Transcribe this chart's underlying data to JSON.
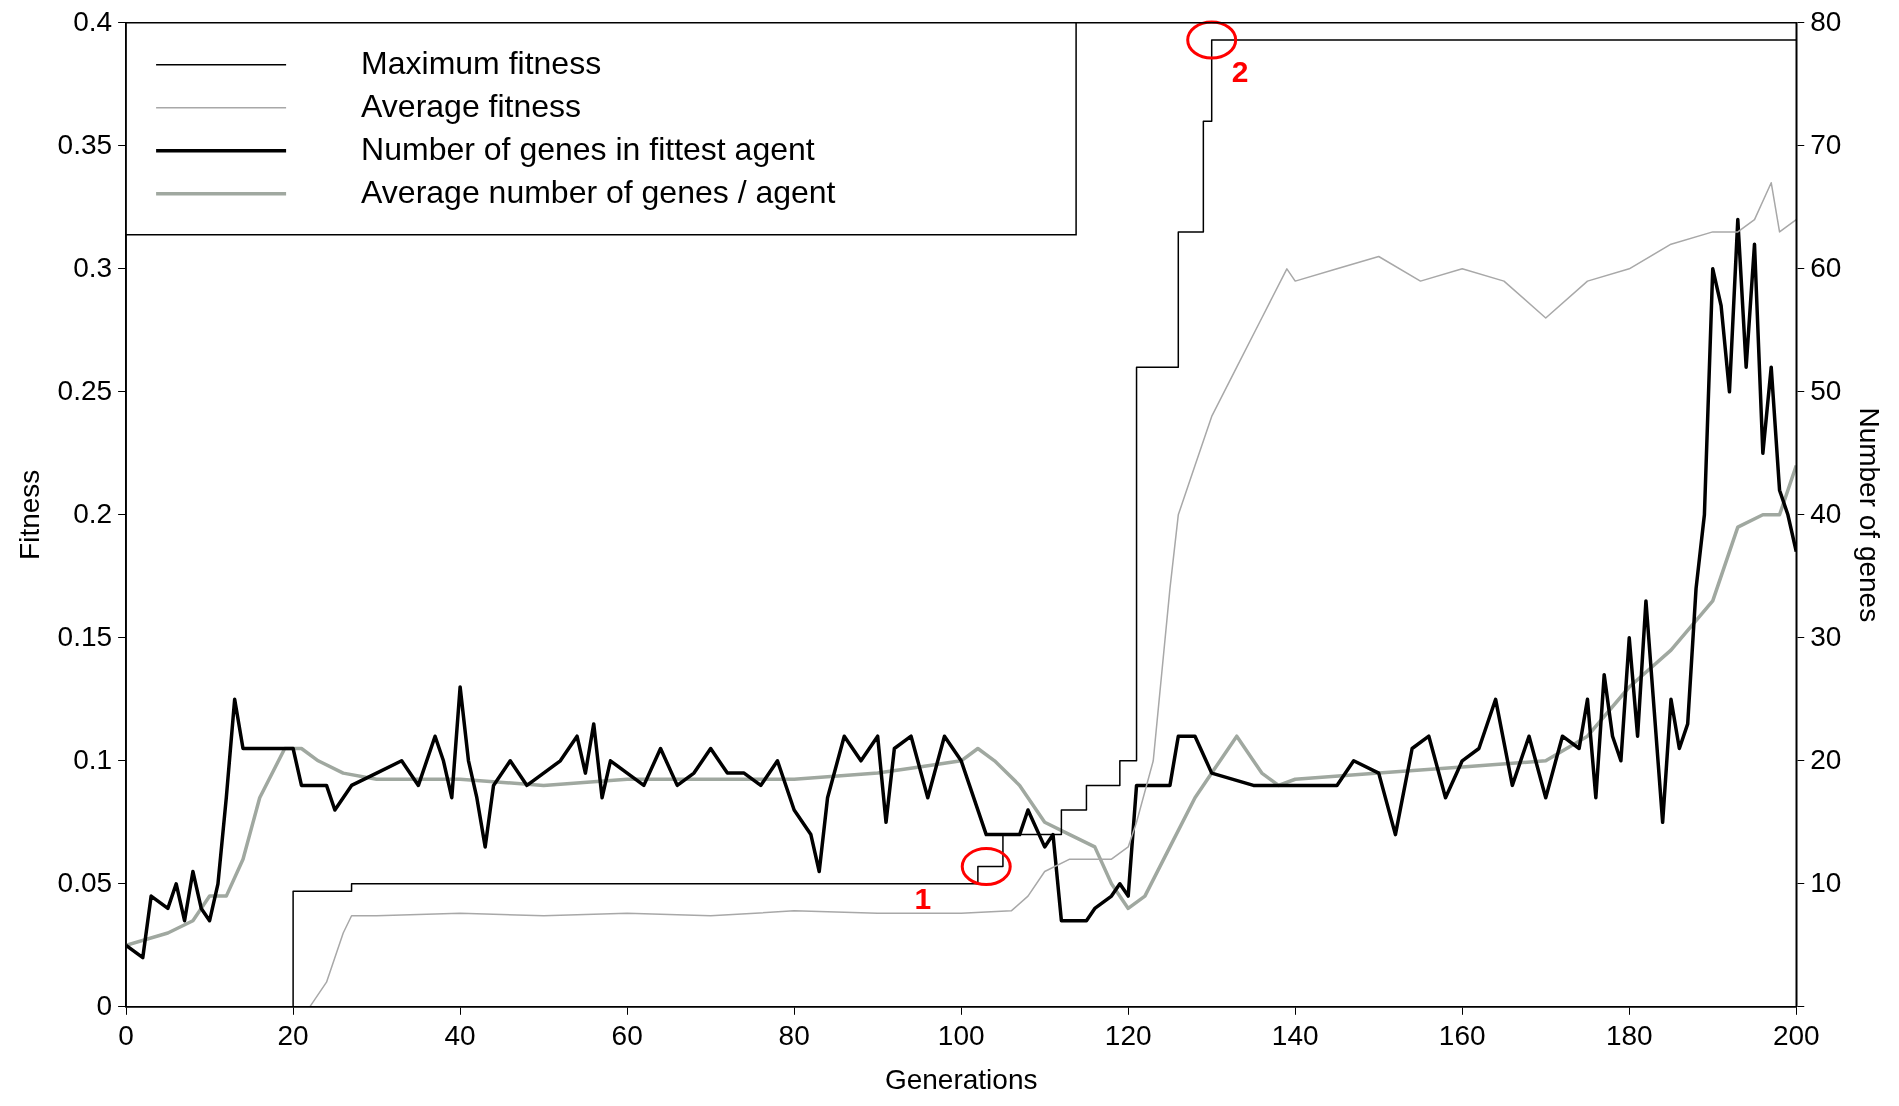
{
  "chart_data": {
    "type": "line",
    "xlabel": "Generations",
    "ylabel": "Fitness",
    "y2label": "Number of genes",
    "xlim": [
      0,
      200
    ],
    "xticks": [
      0,
      20,
      40,
      60,
      80,
      100,
      120,
      140,
      160,
      180,
      200
    ],
    "ylim": [
      0,
      0.4
    ],
    "yticks": [
      0,
      0.05,
      0.1,
      0.15,
      0.2,
      0.25,
      0.3,
      0.35,
      0.4
    ],
    "y2lim": [
      0,
      80
    ],
    "y2ticks": [
      {
        "value": 0,
        "label": null
      },
      10,
      20,
      30,
      40,
      50,
      60,
      70,
      80
    ],
    "grid": false,
    "legend": "top left",
    "marker": "none",
    "annotations": [
      {
        "text": "1",
        "x": 103,
        "y": 0.057
      },
      {
        "text": "2",
        "x": 130,
        "y": 0.393
      }
    ],
    "series": [
      {
        "name": "Maximum fitness",
        "type": "step",
        "color": "#000000",
        "x": [
          0,
          20,
          27,
          102,
          105,
          112,
          115,
          119,
          121,
          126,
          129,
          130,
          200
        ],
        "values": [
          0,
          0.047,
          0.05,
          0.057,
          0.07,
          0.08,
          0.09,
          0.1,
          0.26,
          0.315,
          0.36,
          0.393,
          0.393
        ]
      },
      {
        "name": "Average fitness",
        "color": "#a8a8a8",
        "x": [
          0,
          22,
          24,
          26,
          27,
          30,
          40,
          50,
          60,
          70,
          80,
          90,
          100,
          106,
          108,
          110,
          113,
          116,
          118,
          120,
          121,
          123,
          125,
          126,
          128,
          130,
          133,
          136,
          139,
          140,
          145,
          150,
          155,
          160,
          165,
          170,
          175,
          180,
          185,
          190,
          193,
          195,
          197,
          198,
          200
        ],
        "values": [
          0,
          0,
          0.01,
          0.03,
          0.037,
          0.037,
          0.038,
          0.037,
          0.038,
          0.037,
          0.039,
          0.038,
          0.038,
          0.039,
          0.045,
          0.055,
          0.06,
          0.06,
          0.06,
          0.065,
          0.075,
          0.1,
          0.17,
          0.2,
          0.22,
          0.24,
          0.26,
          0.28,
          0.3,
          0.295,
          0.3,
          0.305,
          0.295,
          0.3,
          0.295,
          0.28,
          0.295,
          0.3,
          0.31,
          0.315,
          0.315,
          0.32,
          0.335,
          0.315,
          0.32
        ]
      },
      {
        "name": "Number of genes in fittest agent",
        "axis": "y2",
        "color": "#000000",
        "x": [
          0,
          2,
          3,
          5,
          6,
          7,
          8,
          9,
          10,
          11,
          12,
          13,
          14,
          15,
          20,
          21,
          24,
          25,
          27,
          30,
          33,
          35,
          37,
          38,
          39,
          40,
          41,
          42,
          43,
          44,
          46,
          48,
          50,
          52,
          54,
          55,
          56,
          57,
          58,
          60,
          62,
          64,
          66,
          68,
          70,
          72,
          74,
          76,
          78,
          80,
          82,
          83,
          84,
          86,
          88,
          90,
          91,
          92,
          94,
          96,
          98,
          100,
          101,
          103,
          104,
          107,
          108,
          110,
          111,
          112,
          115,
          116,
          118,
          119,
          120,
          121,
          125,
          126,
          128,
          130,
          135,
          145,
          147,
          150,
          152,
          154,
          156,
          158,
          160,
          162,
          164,
          166,
          168,
          170,
          172,
          174,
          175,
          176,
          177,
          178,
          179,
          180,
          181,
          182,
          183,
          184,
          185,
          186,
          187,
          188,
          189,
          190,
          191,
          192,
          193,
          194,
          195,
          196,
          197,
          198,
          199,
          200
        ],
        "values": [
          5,
          4,
          9,
          8,
          10,
          7,
          11,
          8,
          7,
          10,
          17,
          25,
          21,
          21,
          21,
          18,
          18,
          16,
          18,
          19,
          20,
          18,
          22,
          20,
          17,
          26,
          20,
          17,
          13,
          18,
          20,
          18,
          19,
          20,
          22,
          19,
          23,
          17,
          20,
          19,
          18,
          21,
          18,
          19,
          21,
          19,
          19,
          18,
          20,
          16,
          14,
          11,
          17,
          22,
          20,
          22,
          15,
          21,
          22,
          17,
          22,
          20,
          18,
          14,
          14,
          14,
          16,
          13,
          14,
          7,
          7,
          8,
          9,
          10,
          9,
          18,
          18,
          22,
          22,
          19,
          18,
          18,
          20,
          19,
          14,
          21,
          22,
          17,
          20,
          21,
          25,
          18,
          22,
          17,
          22,
          21,
          25,
          17,
          27,
          22,
          20,
          30,
          22,
          33,
          24,
          15,
          25,
          21,
          23,
          34,
          40,
          60,
          57,
          50,
          64,
          52,
          62,
          45,
          52,
          42,
          40,
          37
        ]
      },
      {
        "name": "Average number of genes / agent",
        "axis": "y2",
        "color": "#a0a8a0",
        "x": [
          0,
          5,
          8,
          10,
          12,
          14,
          16,
          19,
          21,
          23,
          26,
          30,
          40,
          50,
          60,
          70,
          80,
          90,
          95,
          100,
          102,
          104,
          107,
          110,
          113,
          116,
          118,
          120,
          122,
          125,
          128,
          130,
          133,
          136,
          138,
          140,
          150,
          160,
          170,
          175,
          180,
          185,
          190,
          193,
          196,
          198,
          200
        ],
        "values": [
          5,
          6,
          7,
          9,
          9,
          12,
          17,
          21,
          21,
          20,
          19,
          18.5,
          18.5,
          18,
          18.5,
          18.5,
          18.5,
          19,
          19.5,
          20,
          21,
          20,
          18,
          15,
          14,
          13,
          10,
          8,
          9,
          13,
          17,
          19,
          22,
          19,
          18,
          18.5,
          19,
          19.5,
          20,
          22,
          26,
          29,
          33,
          39,
          40,
          40,
          44
        ]
      }
    ]
  }
}
